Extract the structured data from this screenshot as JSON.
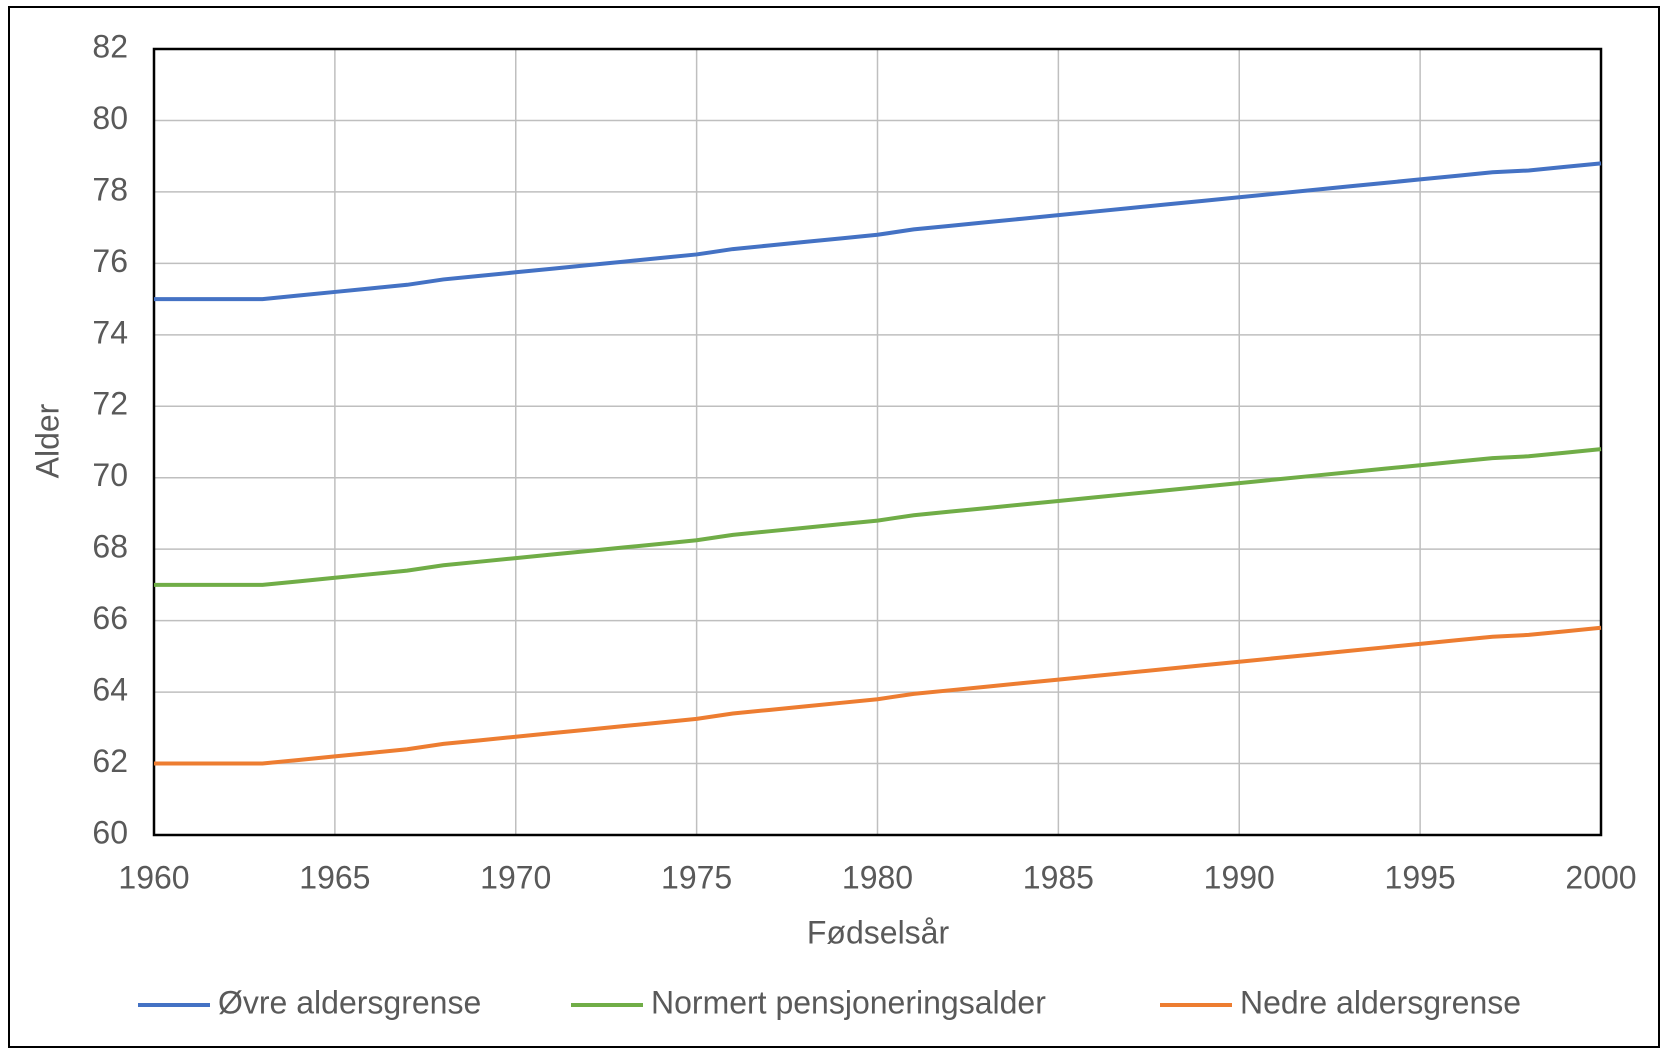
{
  "chart_data": {
    "type": "line",
    "x_label": "Fødselsår",
    "y_label": "Alder",
    "x": [
      1960,
      1961,
      1962,
      1963,
      1964,
      1965,
      1966,
      1967,
      1968,
      1969,
      1970,
      1971,
      1972,
      1973,
      1974,
      1975,
      1976,
      1977,
      1978,
      1979,
      1980,
      1981,
      1982,
      1983,
      1984,
      1985,
      1986,
      1987,
      1988,
      1989,
      1990,
      1991,
      1992,
      1993,
      1994,
      1995,
      1996,
      1997,
      1998,
      1999,
      2000
    ],
    "series": [
      {
        "name": "Øvre aldersgrense",
        "color": "#4472c4",
        "values": [
          75,
          75,
          75,
          75,
          75.1,
          75.2,
          75.3,
          75.4,
          75.55,
          75.65,
          75.75,
          75.85,
          75.95,
          76.05,
          76.15,
          76.25,
          76.4,
          76.5,
          76.6,
          76.7,
          76.8,
          76.95,
          77.05,
          77.15,
          77.25,
          77.35,
          77.45,
          77.55,
          77.65,
          77.75,
          77.85,
          77.95,
          78.05,
          78.15,
          78.25,
          78.35,
          78.45,
          78.55,
          78.6,
          78.7,
          78.8
        ]
      },
      {
        "name": "Normert pensjoneringsalder",
        "color": "#70ad47",
        "values": [
          67,
          67,
          67,
          67,
          67.1,
          67.2,
          67.3,
          67.4,
          67.55,
          67.65,
          67.75,
          67.85,
          67.95,
          68.05,
          68.15,
          68.25,
          68.4,
          68.5,
          68.6,
          68.7,
          68.8,
          68.95,
          69.05,
          69.15,
          69.25,
          69.35,
          69.45,
          69.55,
          69.65,
          69.75,
          69.85,
          69.95,
          70.05,
          70.15,
          70.25,
          70.35,
          70.45,
          70.55,
          70.6,
          70.7,
          70.8
        ]
      },
      {
        "name": "Nedre aldersgrense",
        "color": "#ed7d31",
        "values": [
          62,
          62,
          62,
          62,
          62.1,
          62.2,
          62.3,
          62.4,
          62.55,
          62.65,
          62.75,
          62.85,
          62.95,
          63.05,
          63.15,
          63.25,
          63.4,
          63.5,
          63.6,
          63.7,
          63.8,
          63.95,
          64.05,
          64.15,
          64.25,
          64.35,
          64.45,
          64.55,
          64.65,
          64.75,
          64.85,
          64.95,
          65.05,
          65.15,
          65.25,
          65.35,
          65.45,
          65.55,
          65.6,
          65.7,
          65.8
        ]
      }
    ],
    "xlim": [
      1960,
      2000
    ],
    "xticks": [
      1960,
      1965,
      1970,
      1975,
      1980,
      1985,
      1990,
      1995,
      2000
    ],
    "ylim": [
      60,
      82
    ],
    "yticks": [
      60,
      62,
      64,
      66,
      68,
      70,
      72,
      74,
      76,
      78,
      80,
      82
    ],
    "grid": true,
    "legend": "bottom"
  }
}
